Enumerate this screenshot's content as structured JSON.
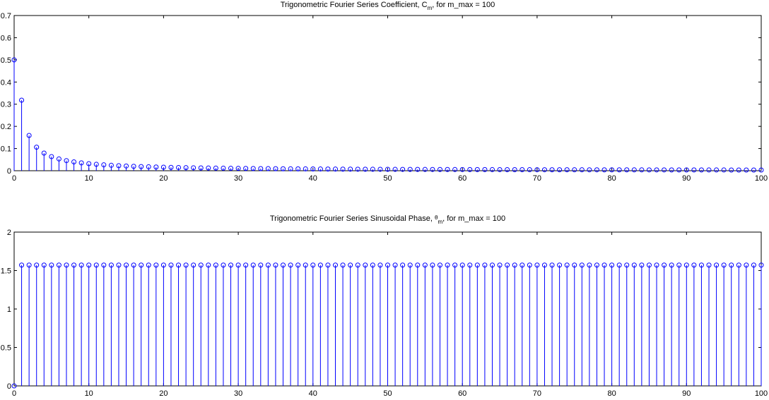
{
  "chart_data": [
    {
      "type": "stem",
      "title": "Trigonometric Fourier Series Coefficient, C_m, for m_max = 100",
      "title_parts": {
        "before": "Trigonometric Fourier Series Coefficient, C",
        "sub": "m",
        "after": ", for m_max = 100"
      },
      "xlabel": "",
      "ylabel": "",
      "xlim": [
        0,
        100
      ],
      "ylim": [
        0,
        0.7
      ],
      "xticks": [
        "0",
        "10",
        "20",
        "30",
        "40",
        "50",
        "60",
        "70",
        "80",
        "90",
        "100"
      ],
      "yticks": [
        "0",
        "0.1",
        "0.2",
        "0.3",
        "0.4",
        "0.5",
        "0.6",
        "0.7"
      ],
      "grid": false,
      "marker": "circle",
      "color": "#0000ff",
      "series": [
        {
          "x_start": 0,
          "x_step": 1,
          "values": [
            0.5,
            0.3183,
            0.1592,
            0.1061,
            0.0796,
            0.0637,
            0.0531,
            0.0455,
            0.0398,
            0.0354,
            0.0318,
            0.0289,
            0.0265,
            0.0245,
            0.0227,
            0.0212,
            0.0199,
            0.0187,
            0.0177,
            0.0168,
            0.0159,
            0.0152,
            0.0145,
            0.0138,
            0.0133,
            0.0127,
            0.0122,
            0.0118,
            0.0114,
            0.011,
            0.0106,
            0.0103,
            0.0099,
            0.0096,
            0.0094,
            0.0091,
            0.0088,
            0.0086,
            0.0084,
            0.0082,
            0.008,
            0.0078,
            0.0076,
            0.0074,
            0.0072,
            0.0071,
            0.0069,
            0.0068,
            0.0066,
            0.0065,
            0.0064,
            0.0062,
            0.0061,
            0.006,
            0.0059,
            0.0058,
            0.0057,
            0.0056,
            0.0055,
            0.0054,
            0.0053,
            0.0052,
            0.0051,
            0.0051,
            0.005,
            0.0049,
            0.0048,
            0.0048,
            0.0047,
            0.0046,
            0.0045,
            0.0045,
            0.0044,
            0.0044,
            0.0043,
            0.0042,
            0.0042,
            0.0041,
            0.0041,
            0.004,
            0.004,
            0.0039,
            0.0039,
            0.0038,
            0.0038,
            0.0037,
            0.0037,
            0.0037,
            0.0036,
            0.0036,
            0.0035,
            0.0035,
            0.0035,
            0.0034,
            0.0034,
            0.0034,
            0.0033,
            0.0033,
            0.0032,
            0.0032,
            0.0032
          ]
        }
      ]
    },
    {
      "type": "stem",
      "title": "Trigonometric Fourier Series Sinusoidal Phase, θ_m, for m_max = 100",
      "title_parts": {
        "before": "Trigonometric Fourier Series Sinusoidal Phase, ",
        "symbol": "θ",
        "sub": "m",
        "after": ", for m_max = 100"
      },
      "xlabel": "",
      "ylabel": "",
      "xlim": [
        0,
        100
      ],
      "ylim": [
        0,
        2
      ],
      "xticks": [
        "0",
        "10",
        "20",
        "30",
        "40",
        "50",
        "60",
        "70",
        "80",
        "90",
        "100"
      ],
      "yticks": [
        "0",
        "0.5",
        "1",
        "1.5",
        "2"
      ],
      "grid": false,
      "marker": "circle",
      "color": "#0000ff",
      "series": [
        {
          "x_start": 0,
          "x_step": 1,
          "values": [
            0,
            1.5708,
            1.5708,
            1.5708,
            1.5708,
            1.5708,
            1.5708,
            1.5708,
            1.5708,
            1.5708,
            1.5708,
            1.5708,
            1.5708,
            1.5708,
            1.5708,
            1.5708,
            1.5708,
            1.5708,
            1.5708,
            1.5708,
            1.5708,
            1.5708,
            1.5708,
            1.5708,
            1.5708,
            1.5708,
            1.5708,
            1.5708,
            1.5708,
            1.5708,
            1.5708,
            1.5708,
            1.5708,
            1.5708,
            1.5708,
            1.5708,
            1.5708,
            1.5708,
            1.5708,
            1.5708,
            1.5708,
            1.5708,
            1.5708,
            1.5708,
            1.5708,
            1.5708,
            1.5708,
            1.5708,
            1.5708,
            1.5708,
            1.5708,
            1.5708,
            1.5708,
            1.5708,
            1.5708,
            1.5708,
            1.5708,
            1.5708,
            1.5708,
            1.5708,
            1.5708,
            1.5708,
            1.5708,
            1.5708,
            1.5708,
            1.5708,
            1.5708,
            1.5708,
            1.5708,
            1.5708,
            1.5708,
            1.5708,
            1.5708,
            1.5708,
            1.5708,
            1.5708,
            1.5708,
            1.5708,
            1.5708,
            1.5708,
            1.5708,
            1.5708,
            1.5708,
            1.5708,
            1.5708,
            1.5708,
            1.5708,
            1.5708,
            1.5708,
            1.5708,
            1.5708,
            1.5708,
            1.5708,
            1.5708,
            1.5708,
            1.5708,
            1.5708,
            1.5708,
            1.5708,
            1.5708,
            1.5708
          ]
        }
      ]
    }
  ]
}
